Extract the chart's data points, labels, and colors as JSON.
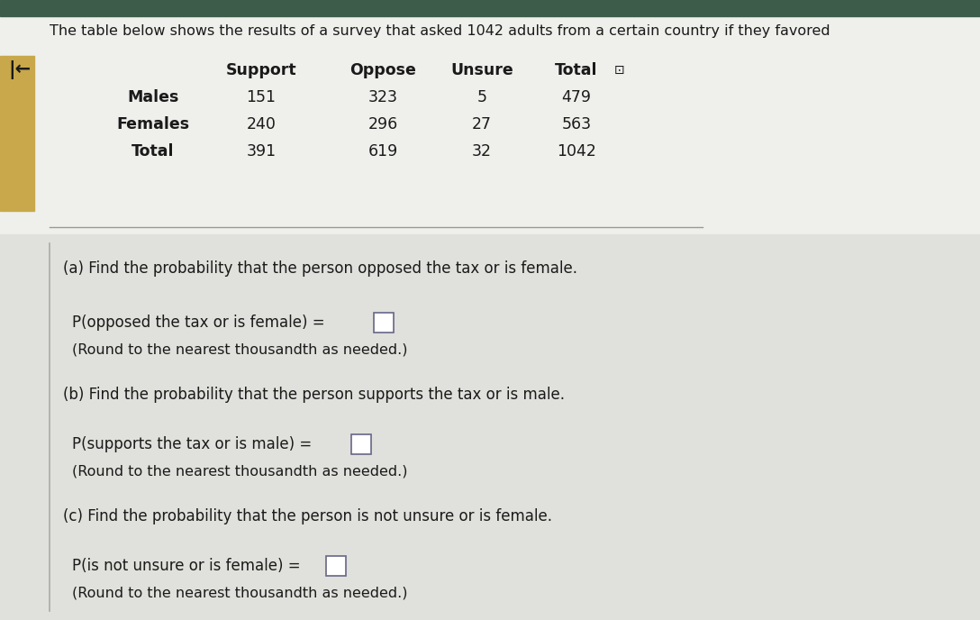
{
  "title": "The table below shows the results of a survey that asked 1042 adults from a certain country if they favored",
  "table_headers": [
    "",
    "Support",
    "Oppose",
    "Unsure",
    "Total"
  ],
  "table_rows": [
    [
      "Males",
      "151",
      "323",
      "5",
      "479"
    ],
    [
      "Females",
      "240",
      "296",
      "27",
      "563"
    ],
    [
      "Total",
      "391",
      "619",
      "32",
      "1042"
    ]
  ],
  "part_a_question": "(a) Find the probability that the person opposed the tax or is female.",
  "part_a_label": "P(opposed the tax or is female) =",
  "part_a_round": "(Round to the nearest thousandth as needed.)",
  "part_b_question": "(b) Find the probability that the person supports the tax or is male.",
  "part_b_label": "P(supports the tax or is male) =",
  "part_b_round": "(Round to the nearest thousandth as needed.)",
  "part_c_question": "(c) Find the probability that the person is not unsure or is female.",
  "part_c_label": "P(is not unsure or is female) =",
  "part_c_round": "(Round to the nearest thousandth as needed.)",
  "bg_color": "#c8c8c8",
  "top_section_color": "#efefec",
  "bottom_section_color": "#e0e0dc",
  "left_bar_color": "#c8a84b",
  "text_color": "#1a1a1a",
  "top_bar_color": "#3d5c4a",
  "divider_color": "#999999",
  "left_line_color": "#aaaaaa",
  "box_edge_color": "#666688",
  "arrow_color": "#1a1a1a"
}
